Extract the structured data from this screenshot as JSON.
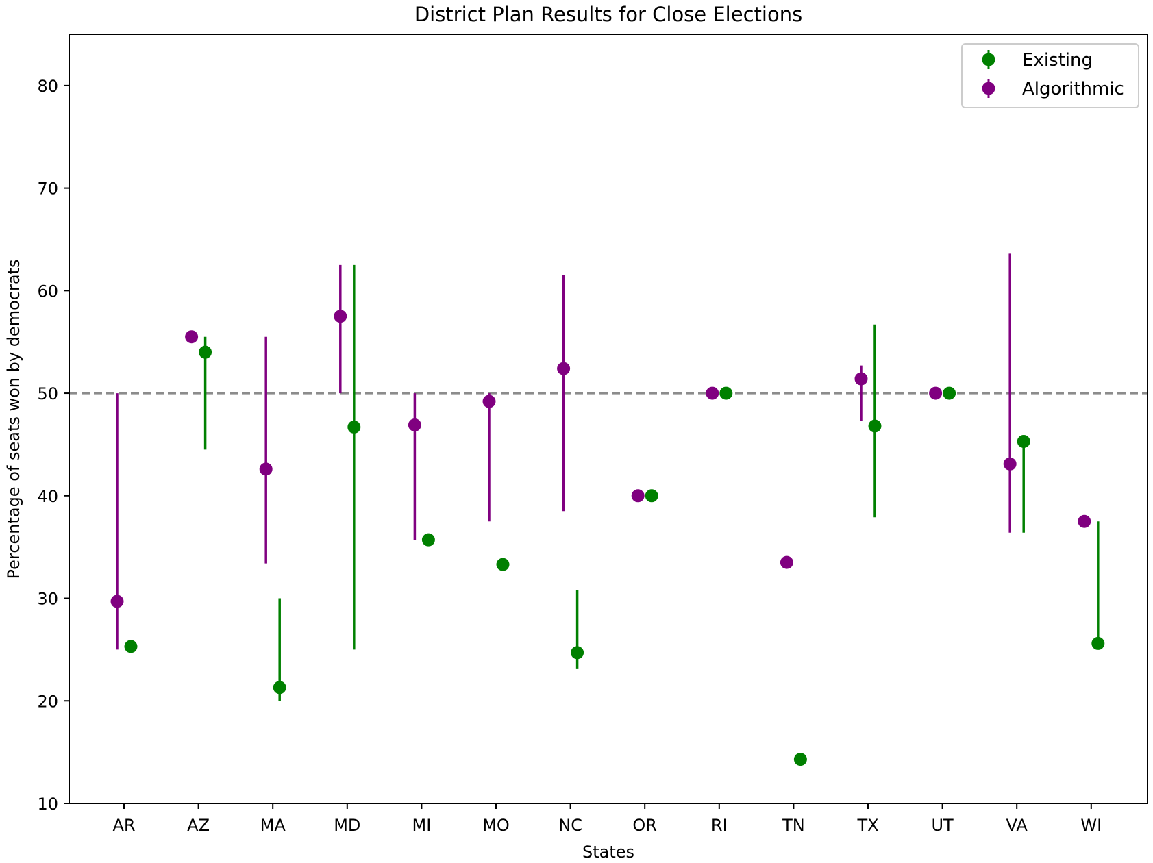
{
  "chart_data": {
    "type": "errorbar-scatter",
    "title": "District Plan Results for Close Elections",
    "xlabel": "States",
    "ylabel": "Percentage of seats won by democrats",
    "ylim": [
      10,
      85
    ],
    "yticks": [
      10,
      20,
      30,
      40,
      50,
      60,
      70,
      80
    ],
    "categories": [
      "AR",
      "AZ",
      "MA",
      "MD",
      "MI",
      "MO",
      "NC",
      "OR",
      "RI",
      "TN",
      "TX",
      "UT",
      "VA",
      "WI"
    ],
    "reference_line": {
      "y": 50,
      "style": "dashed",
      "color": "#8c8c8c"
    },
    "legend_position": "upper right",
    "series": [
      {
        "name": "Existing",
        "color": "#008000",
        "values": [
          25.3,
          54.0,
          21.3,
          46.7,
          35.7,
          33.3,
          24.7,
          40.0,
          50.0,
          14.3,
          46.8,
          50.0,
          45.3,
          25.6
        ],
        "lower": [
          25.3,
          44.5,
          20.0,
          25.0,
          35.7,
          33.3,
          23.1,
          40.0,
          50.0,
          14.3,
          37.9,
          50.0,
          36.4,
          25.6
        ],
        "upper": [
          25.3,
          55.5,
          30.0,
          62.5,
          35.7,
          33.3,
          30.8,
          40.0,
          50.0,
          14.3,
          56.7,
          50.0,
          45.3,
          37.5
        ]
      },
      {
        "name": "Algorithmic",
        "color": "#800080",
        "values": [
          29.7,
          55.5,
          42.6,
          57.5,
          46.9,
          49.2,
          52.4,
          40.0,
          50.0,
          33.5,
          51.4,
          50.0,
          43.1,
          37.5
        ],
        "lower": [
          25.0,
          55.5,
          33.4,
          50.0,
          35.7,
          37.5,
          38.5,
          40.0,
          50.0,
          33.5,
          47.3,
          50.0,
          36.4,
          37.5
        ],
        "upper": [
          50.0,
          55.5,
          55.5,
          62.5,
          50.0,
          50.0,
          61.5,
          40.0,
          50.0,
          33.5,
          52.7,
          50.0,
          63.6,
          37.5
        ]
      }
    ]
  }
}
